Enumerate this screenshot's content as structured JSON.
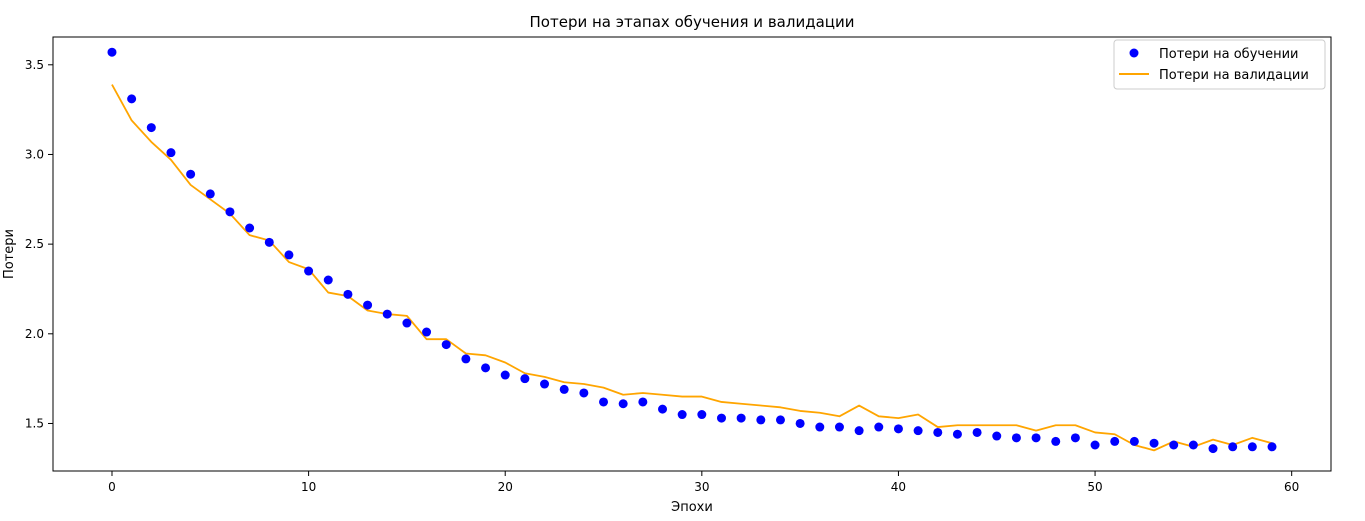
{
  "chart_data": {
    "type": "scatter+line",
    "title": "Потери на этапах обучения и валидации",
    "xlabel": "Эпохи",
    "ylabel": "Потери",
    "xlim": [
      -3,
      62
    ],
    "ylim": [
      1.235,
      3.655
    ],
    "x_ticks": [
      0,
      10,
      20,
      30,
      40,
      50,
      60
    ],
    "y_ticks": [
      1.5,
      2.0,
      2.5,
      3.0,
      3.5
    ],
    "x_tick_labels": [
      "0",
      "10",
      "20",
      "30",
      "40",
      "50",
      "60"
    ],
    "y_tick_labels": [
      "1.5",
      "2.0",
      "2.5",
      "3.0",
      "3.5"
    ],
    "grid": false,
    "legend_position": "top-right",
    "legend": [
      "Потери на обучении",
      "Потери на валидации"
    ],
    "series": [
      {
        "name": "Потери на обучении",
        "kind": "scatter",
        "color": "#0000ff",
        "x": [
          0,
          1,
          2,
          3,
          4,
          5,
          6,
          7,
          8,
          9,
          10,
          11,
          12,
          13,
          14,
          15,
          16,
          17,
          18,
          19,
          20,
          21,
          22,
          23,
          24,
          25,
          26,
          27,
          28,
          29,
          30,
          31,
          32,
          33,
          34,
          35,
          36,
          37,
          38,
          39,
          40,
          41,
          42,
          43,
          44,
          45,
          46,
          47,
          48,
          49,
          50,
          51,
          52,
          53,
          54,
          55,
          56,
          57,
          58,
          59
        ],
        "y": [
          3.57,
          3.31,
          3.15,
          3.01,
          2.89,
          2.78,
          2.68,
          2.59,
          2.51,
          2.44,
          2.35,
          2.3,
          2.22,
          2.16,
          2.11,
          2.06,
          2.01,
          1.94,
          1.86,
          1.81,
          1.77,
          1.75,
          1.72,
          1.69,
          1.67,
          1.62,
          1.61,
          1.62,
          1.58,
          1.55,
          1.55,
          1.53,
          1.53,
          1.52,
          1.52,
          1.5,
          1.48,
          1.48,
          1.46,
          1.48,
          1.47,
          1.46,
          1.45,
          1.44,
          1.45,
          1.43,
          1.42,
          1.42,
          1.4,
          1.42,
          1.38,
          1.4,
          1.4,
          1.39,
          1.38,
          1.38,
          1.36,
          1.37,
          1.37,
          1.37
        ]
      },
      {
        "name": "Потери на валидации",
        "kind": "line",
        "color": "#ffa500",
        "x": [
          0,
          1,
          2,
          3,
          4,
          5,
          6,
          7,
          8,
          9,
          10,
          11,
          12,
          13,
          14,
          15,
          16,
          17,
          18,
          19,
          20,
          21,
          22,
          23,
          24,
          25,
          26,
          27,
          28,
          29,
          30,
          31,
          32,
          33,
          34,
          35,
          36,
          37,
          38,
          39,
          40,
          41,
          42,
          43,
          44,
          45,
          46,
          47,
          48,
          49,
          50,
          51,
          52,
          53,
          54,
          55,
          56,
          57,
          58,
          59
        ],
        "y": [
          3.39,
          3.19,
          3.07,
          2.97,
          2.83,
          2.75,
          2.67,
          2.55,
          2.52,
          2.4,
          2.36,
          2.23,
          2.21,
          2.13,
          2.11,
          2.1,
          1.97,
          1.97,
          1.89,
          1.88,
          1.84,
          1.78,
          1.76,
          1.73,
          1.72,
          1.7,
          1.66,
          1.67,
          1.66,
          1.65,
          1.65,
          1.62,
          1.61,
          1.6,
          1.59,
          1.57,
          1.56,
          1.54,
          1.6,
          1.54,
          1.53,
          1.55,
          1.48,
          1.49,
          1.49,
          1.49,
          1.49,
          1.46,
          1.49,
          1.49,
          1.45,
          1.44,
          1.38,
          1.35,
          1.4,
          1.37,
          1.41,
          1.38,
          1.42,
          1.39
        ]
      }
    ]
  }
}
